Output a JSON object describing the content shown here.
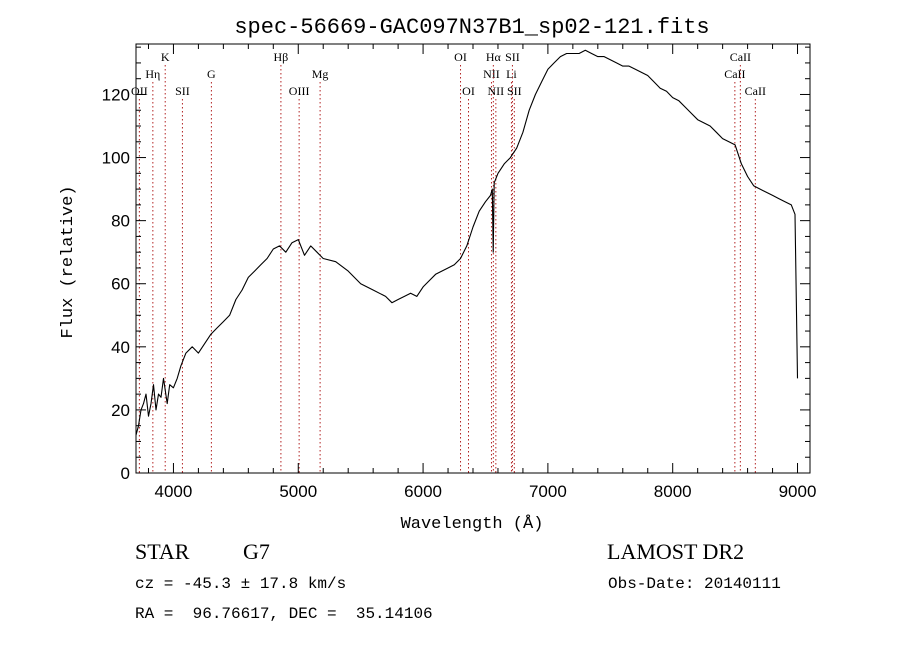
{
  "chart_data": {
    "type": "line",
    "title": "spec-56669-GAC097N37B1_sp02-121.fits",
    "xlabel": "Wavelength (Å)",
    "ylabel": "Flux (relative)",
    "xlim": [
      3700,
      9100
    ],
    "ylim": [
      0,
      136
    ],
    "xticks": [
      4000,
      5000,
      6000,
      7000,
      8000,
      9000
    ],
    "yticks": [
      0,
      20,
      40,
      60,
      80,
      100,
      120
    ],
    "series": [
      {
        "x": [
          3700,
          3720,
          3740,
          3760,
          3780,
          3800,
          3820,
          3840,
          3860,
          3880,
          3900,
          3920,
          3950,
          3970,
          4000,
          4030,
          4060,
          4100,
          4150,
          4200,
          4250,
          4300,
          4350,
          4400,
          4450,
          4500,
          4550,
          4600,
          4650,
          4700,
          4750,
          4800,
          4850,
          4900,
          4950,
          5000,
          5050,
          5100,
          5150,
          5200,
          5300,
          5400,
          5500,
          5600,
          5700,
          5750,
          5800,
          5850,
          5900,
          5950,
          6000,
          6050,
          6100,
          6150,
          6200,
          6250,
          6300,
          6350,
          6400,
          6450,
          6500,
          6540,
          6555,
          6562,
          6570,
          6600,
          6650,
          6700,
          6750,
          6800,
          6850,
          6900,
          6950,
          7000,
          7050,
          7100,
          7150,
          7200,
          7250,
          7300,
          7350,
          7400,
          7450,
          7500,
          7550,
          7600,
          7650,
          7700,
          7750,
          7800,
          7850,
          7900,
          7950,
          8000,
          8050,
          8100,
          8150,
          8200,
          8250,
          8300,
          8350,
          8400,
          8450,
          8500,
          8550,
          8600,
          8650,
          8700,
          8750,
          8800,
          8850,
          8900,
          8950,
          8980,
          9000
        ],
        "y": [
          12,
          15,
          20,
          22,
          25,
          18,
          22,
          28,
          20,
          25,
          24,
          30,
          22,
          28,
          27,
          30,
          34,
          38,
          40,
          38,
          41,
          44,
          46,
          48,
          50,
          55,
          58,
          62,
          64,
          66,
          68,
          71,
          72,
          70,
          73,
          74,
          69,
          72,
          70,
          68,
          67,
          64,
          60,
          58,
          56,
          54,
          55,
          56,
          57,
          56,
          59,
          61,
          63,
          64,
          65,
          66,
          68,
          72,
          78,
          83,
          86,
          88,
          90,
          70,
          92,
          95,
          98,
          100,
          103,
          108,
          115,
          120,
          124,
          128,
          130,
          132,
          133,
          133,
          133,
          134,
          133,
          132,
          132,
          131,
          130,
          129,
          129,
          128,
          127,
          126,
          124,
          122,
          121,
          119,
          118,
          116,
          114,
          112,
          111,
          110,
          108,
          106,
          105,
          104,
          98,
          94,
          91,
          90,
          89,
          88,
          87,
          86,
          85,
          82,
          30
        ]
      }
    ],
    "lines": [
      {
        "label": "OII",
        "wave": 3727,
        "row": 3
      },
      {
        "label": "Hη",
        "wave": 3835,
        "row": 2
      },
      {
        "label": "K",
        "wave": 3934,
        "row": 1
      },
      {
        "label": "SII",
        "wave": 4072,
        "row": 3
      },
      {
        "label": "G",
        "wave": 4304,
        "row": 2
      },
      {
        "label": "Hβ",
        "wave": 4861,
        "row": 1
      },
      {
        "label": "OIII",
        "wave": 5007,
        "row": 3
      },
      {
        "label": "Mg",
        "wave": 5175,
        "row": 2
      },
      {
        "label": "OI",
        "wave": 6300,
        "row": 1
      },
      {
        "label": "OI",
        "wave": 6364,
        "row": 3
      },
      {
        "label": "NII",
        "wave": 6548,
        "row": 2
      },
      {
        "label": "Hα",
        "wave": 6563,
        "row": 1
      },
      {
        "label": "NII",
        "wave": 6583,
        "row": 3
      },
      {
        "label": "Li",
        "wave": 6708,
        "row": 2
      },
      {
        "label": "SII",
        "wave": 6716,
        "row": 1
      },
      {
        "label": "SII",
        "wave": 6731,
        "row": 3
      },
      {
        "label": "CaII",
        "wave": 8498,
        "row": 2
      },
      {
        "label": "CaII",
        "wave": 8542,
        "row": 1
      },
      {
        "label": "CaII",
        "wave": 8662,
        "row": 3
      }
    ]
  },
  "info": {
    "class_label": "STAR",
    "subclass": "G7",
    "survey": "LAMOST DR2",
    "cz": "cz = -45.3 ± 17.8 km/s",
    "obs_date": "Obs-Date: 20140111",
    "radec": "RA =  96.76617, DEC =  35.14106"
  },
  "colors": {
    "line": "#000000",
    "marker": "#b22222",
    "background": "#ffffff"
  }
}
